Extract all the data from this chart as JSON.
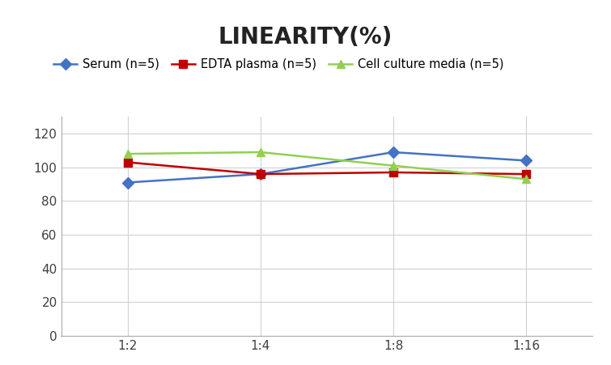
{
  "title": "LINEARITY(%)",
  "title_fontsize": 20,
  "title_fontweight": "bold",
  "x_labels": [
    "1:2",
    "1:4",
    "1:8",
    "1:16"
  ],
  "x_positions": [
    0,
    1,
    2,
    3
  ],
  "series": [
    {
      "label": "Serum (n=5)",
      "values": [
        91,
        96,
        109,
        104
      ],
      "color": "#4472C4",
      "marker": "D",
      "markersize": 7,
      "linewidth": 1.8
    },
    {
      "label": "EDTA plasma (n=5)",
      "values": [
        103,
        96,
        97,
        96
      ],
      "color": "#C00000",
      "marker": "s",
      "markersize": 7,
      "linewidth": 1.8
    },
    {
      "label": "Cell culture media (n=5)",
      "values": [
        108,
        109,
        101,
        93
      ],
      "color": "#92D050",
      "marker": "^",
      "markersize": 7,
      "linewidth": 1.8
    }
  ],
  "ylim": [
    0,
    130
  ],
  "yticks": [
    0,
    20,
    40,
    60,
    80,
    100,
    120
  ],
  "background_color": "#ffffff",
  "legend_fontsize": 10.5,
  "grid_color": "#d0d0d0",
  "axes_color": "#aaaaaa"
}
